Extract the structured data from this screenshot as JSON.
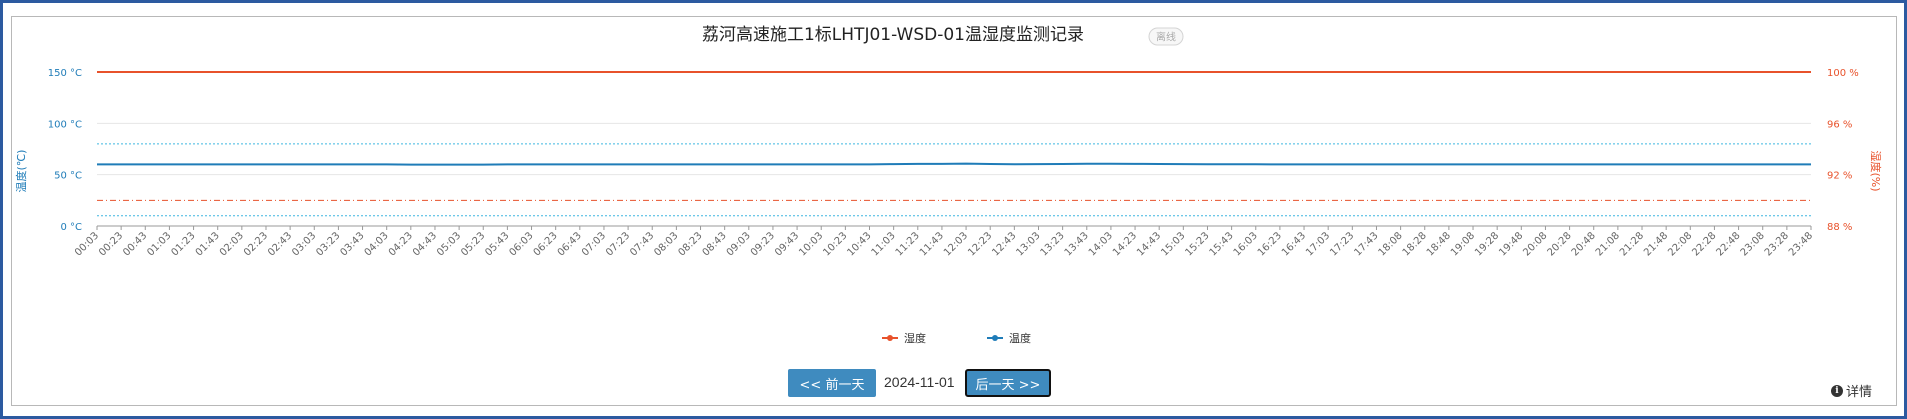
{
  "chart_data": {
    "type": "line",
    "title": "荔河高速施工1标LHTJ01-WSD-01温湿度监测记录",
    "status_badge": "离线",
    "x": [
      "00:03",
      "00:23",
      "00:43",
      "01:03",
      "01:23",
      "01:43",
      "02:03",
      "02:23",
      "02:43",
      "03:03",
      "03:23",
      "03:43",
      "04:03",
      "04:23",
      "04:43",
      "05:03",
      "05:23",
      "05:43",
      "06:03",
      "06:23",
      "06:43",
      "07:03",
      "07:23",
      "07:43",
      "08:03",
      "08:23",
      "08:43",
      "09:03",
      "09:23",
      "09:43",
      "10:03",
      "10:23",
      "10:43",
      "11:03",
      "11:23",
      "11:43",
      "12:03",
      "12:23",
      "12:43",
      "13:03",
      "13:23",
      "13:43",
      "14:03",
      "14:23",
      "14:43",
      "15:03",
      "15:23",
      "15:43",
      "16:03",
      "16:23",
      "16:43",
      "17:03",
      "17:23",
      "17:43",
      "18:08",
      "18:28",
      "18:48",
      "19:08",
      "19:28",
      "19:48",
      "20:08",
      "20:28",
      "20:48",
      "21:08",
      "21:28",
      "21:48",
      "22:08",
      "22:28",
      "22:48",
      "23:08",
      "23:28",
      "23:48"
    ],
    "series": [
      {
        "name": "湿度",
        "axis": "right",
        "color": "#e8522b",
        "values": [
          100,
          100,
          100,
          100,
          100,
          100,
          100,
          100,
          100,
          100,
          100,
          100,
          100,
          100,
          100,
          100,
          100,
          100,
          100,
          100,
          100,
          100,
          100,
          100,
          100,
          100,
          100,
          100,
          100,
          100,
          100,
          100,
          100,
          100,
          100,
          100,
          100,
          100,
          100,
          100,
          100,
          100,
          100,
          100,
          100,
          100,
          100,
          100,
          100,
          100,
          100,
          100,
          100,
          100,
          100,
          100,
          100,
          100,
          100,
          100,
          100,
          100,
          100,
          100,
          100,
          100,
          100,
          100,
          100,
          100,
          100,
          100
        ]
      },
      {
        "name": "温度",
        "axis": "left",
        "color": "#1f7cb8",
        "values": [
          60,
          60,
          60,
          60,
          60,
          60,
          60,
          60,
          60,
          60,
          60,
          60,
          60,
          59.8,
          59.8,
          59.8,
          59.8,
          60,
          60,
          60,
          60,
          60,
          60,
          60,
          60,
          60,
          60,
          60,
          60,
          60,
          60,
          60,
          60,
          60.3,
          60.5,
          60.5,
          60.8,
          60.4,
          60.2,
          60.3,
          60.4,
          60.6,
          60.7,
          60.5,
          60.4,
          60.3,
          60.2,
          60.2,
          60.1,
          60,
          60,
          60,
          60,
          60,
          60,
          60,
          60,
          60,
          60,
          60,
          60,
          60,
          60,
          60,
          60,
          60,
          60,
          60,
          60,
          60,
          60,
          60
        ]
      }
    ],
    "y_left": {
      "label": "温度(℃)",
      "ticks": [
        "0 °C",
        "50 °C",
        "100 °C",
        "150 °C"
      ],
      "range": [
        0,
        150
      ],
      "color": "#1f7cb8"
    },
    "y_right": {
      "label": "湿度(%)",
      "ticks": [
        "88 %",
        "92 %",
        "96 %",
        "100 %"
      ],
      "range": [
        88,
        100
      ],
      "color": "#e8522b"
    },
    "reference_lines": [
      {
        "axis": "left",
        "value": 80,
        "color": "#3fb6e0",
        "style": "dotted"
      },
      {
        "axis": "left",
        "value": 10,
        "color": "#3fb6e0",
        "style": "dotted"
      },
      {
        "axis": "right",
        "value": 90,
        "color": "#e8522b",
        "style": "dashdot"
      }
    ],
    "legend": {
      "position": "bottom-center"
    },
    "grid": true
  },
  "controls": {
    "prev_label": "<< 前一天",
    "date": "2024-11-01",
    "next_label": "后一天 >>",
    "detail_label": "详情"
  }
}
